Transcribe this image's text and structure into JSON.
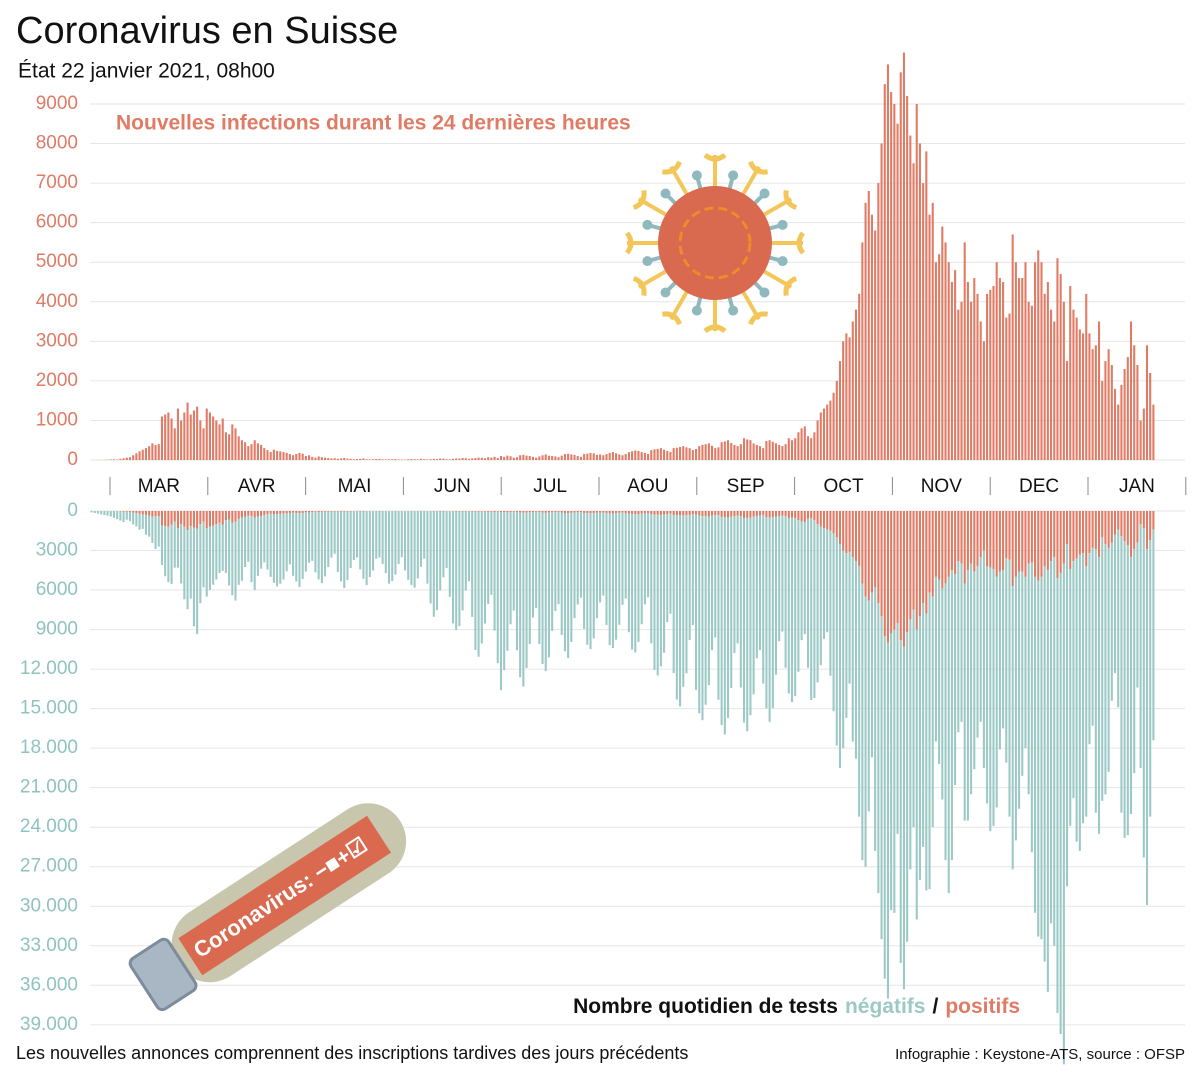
{
  "chart_data": {
    "type": "bar",
    "title": "Coronavirus en Suisse",
    "subtitle": "État 22 janvier 2021, 08h00",
    "top_label": "Nouvelles infections durant les 24 dernières heures",
    "bottom_label": "Nombre quotidien de tests",
    "legend_separator": "/",
    "illustration_text": "Coronavirus: −■+☑",
    "footnote": "Les nouvelles annonces comprennent des inscriptions tardives des jours précédents",
    "source": "Infographie : Keystone-ATS, source : OFSP",
    "months": [
      "MAR",
      "AVR",
      "MAI",
      "JUN",
      "JUL",
      "AOU",
      "SEP",
      "OCT",
      "NOV",
      "DEC",
      "JAN"
    ],
    "ylim": [
      0,
      10500
    ],
    "yticks": [
      0,
      1000,
      2000,
      3000,
      4000,
      5000,
      6000,
      7000,
      8000,
      9000
    ],
    "y2lim": [
      0,
      40000
    ],
    "y2ticks": [
      0,
      3000,
      6000,
      9000,
      {
        "value": 12000,
        "label": "12.000"
      },
      {
        "value": 15000,
        "label": "15.000"
      },
      {
        "value": 18000,
        "label": "18.000"
      },
      {
        "value": 21000,
        "label": "21.000"
      },
      {
        "value": 24000,
        "label": "24.000"
      },
      {
        "value": 27000,
        "label": "27.000"
      },
      {
        "value": 30000,
        "label": "30.000"
      },
      {
        "value": 33000,
        "label": "33.000"
      },
      {
        "value": 36000,
        "label": "36.000"
      },
      {
        "value": 39000,
        "label": "39.000"
      }
    ],
    "grid": true,
    "series": [
      {
        "name": "positifs",
        "color": "#e07b65",
        "values": [
          0,
          0,
          1,
          2,
          5,
          10,
          15,
          18,
          12,
          30,
          40,
          60,
          70,
          120,
          170,
          220,
          260,
          300,
          350,
          420,
          380,
          400,
          1100,
          1150,
          1200,
          1050,
          800,
          1300,
          1000,
          1200,
          1450,
          1150,
          1250,
          1350,
          1000,
          800,
          1300,
          1200,
          1100,
          1000,
          900,
          1050,
          700,
          650,
          900,
          800,
          600,
          500,
          450,
          350,
          400,
          500,
          420,
          380,
          300,
          250,
          200,
          260,
          230,
          220,
          200,
          180,
          150,
          120,
          150,
          180,
          160,
          100,
          120,
          80,
          60,
          90,
          70,
          60,
          50,
          40,
          45,
          30,
          40,
          50,
          35,
          30,
          20,
          25,
          30,
          40,
          20,
          15,
          20,
          25,
          30,
          18,
          15,
          20,
          20,
          25,
          15,
          10,
          10,
          20,
          25,
          20,
          15,
          30,
          20,
          15,
          20,
          30,
          25,
          40,
          35,
          20,
          15,
          30,
          40,
          35,
          50,
          45,
          30,
          40,
          50,
          60,
          55,
          45,
          70,
          60,
          80,
          50,
          100,
          80,
          110,
          95,
          60,
          70,
          120,
          130,
          110,
          100,
          80,
          60,
          90,
          120,
          140,
          110,
          100,
          90,
          70,
          110,
          150,
          160,
          140,
          130,
          100,
          80,
          150,
          160,
          180,
          170,
          130,
          140,
          120,
          150,
          180,
          200,
          170,
          140,
          120,
          150,
          200,
          220,
          240,
          230,
          200,
          180,
          150,
          250,
          270,
          280,
          300,
          260,
          230,
          200,
          300,
          310,
          330,
          350,
          320,
          300,
          250,
          280,
          350,
          380,
          400,
          420,
          360,
          300,
          320,
          450,
          470,
          500,
          430,
          380,
          350,
          400,
          550,
          520,
          500,
          420,
          380,
          350,
          300,
          480,
          500,
          460,
          420,
          380,
          350,
          400,
          550,
          500,
          550,
          700,
          800,
          850,
          600,
          550,
          700,
          1000,
          1200,
          1300,
          1400,
          1500,
          1700,
          2000,
          2500,
          3000,
          3200,
          3100,
          3500,
          3800,
          4200,
          5500,
          6500,
          6800,
          6200,
          5800,
          7000,
          8000,
          9500,
          10000,
          9300,
          9000,
          8500,
          9800,
          10300,
          9200,
          8200,
          7500,
          9000,
          8000,
          7000,
          7800,
          6200,
          6500,
          5000,
          5200,
          5900,
          5500,
          5000,
          4500,
          4800,
          3800,
          4000,
          5500,
          4500,
          4000,
          4600,
          4200,
          3500,
          3000,
          4200,
          4300,
          4400,
          5000,
          4600,
          4500,
          3600,
          3700,
          5700,
          5000,
          4600,
          4600,
          5000,
          4000,
          3900,
          5000,
          5300,
          5000,
          4200,
          4500,
          3800,
          3500,
          5100,
          4700,
          4000,
          2500,
          4400,
          3800,
          3600,
          3300,
          3200,
          4200,
          3200,
          2800,
          2900,
          3500,
          2000,
          2500,
          2800,
          2400,
          1800,
          1400,
          1900,
          2300,
          2600,
          3500,
          2900,
          2400,
          1000,
          1300,
          2900,
          2200,
          1400
        ]
      },
      {
        "name": "négatifs",
        "color": "#9cc9c5",
        "values": [
          100,
          150,
          200,
          250,
          300,
          350,
          400,
          500,
          600,
          700,
          800,
          600,
          700,
          900,
          1000,
          1200,
          1100,
          1500,
          1600,
          2000,
          2500,
          2300,
          3000,
          3800,
          4200,
          4500,
          3500,
          3000,
          4500,
          5500,
          6000,
          5500,
          7500,
          8000,
          6000,
          5000,
          5200,
          4800,
          4500,
          4200,
          3800,
          3500,
          4000,
          5000,
          5500,
          6000,
          5000,
          4800,
          3800,
          3500,
          5000,
          5500,
          4500,
          4000,
          3600,
          4200,
          4800,
          5200,
          5500,
          5300,
          5000,
          4400,
          3900,
          4800,
          5200,
          5600,
          5000,
          4500,
          3800,
          3700,
          4600,
          5100,
          5400,
          4900,
          4200,
          3500,
          3200,
          4600,
          5300,
          5800,
          5200,
          4300,
          3700,
          3500,
          4400,
          5100,
          5600,
          5000,
          4500,
          3600,
          3500,
          4000,
          4700,
          5500,
          5300,
          4800,
          4000,
          3500,
          4500,
          5200,
          5600,
          5800,
          5100,
          4200,
          3600,
          5500,
          7000,
          8000,
          7500,
          6000,
          5000,
          4300,
          6500,
          8500,
          9000,
          8700,
          7500,
          6000,
          5300,
          8000,
          10500,
          11000,
          10000,
          8500,
          7000,
          6300,
          9000,
          11500,
          13500,
          12000,
          10500,
          8500,
          7500,
          10500,
          12500,
          13200,
          11800,
          10000,
          8000,
          7300,
          10000,
          11500,
          12000,
          11000,
          9000,
          7500,
          7000,
          9300,
          10500,
          11000,
          9800,
          8000,
          7000,
          6500,
          8800,
          10000,
          10300,
          9500,
          8000,
          6800,
          6300,
          8500,
          10000,
          10200,
          9600,
          8500,
          7000,
          6500,
          9000,
          10300,
          10500,
          9700,
          8400,
          6900,
          6400,
          9800,
          11800,
          12200,
          11500,
          10500,
          8200,
          7600,
          12000,
          14000,
          14500,
          13000,
          12000,
          9500,
          8400,
          13300,
          15000,
          15500,
          14300,
          12800,
          10200,
          9300,
          14000,
          15800,
          16500,
          15200,
          13000,
          10400,
          9700,
          13000,
          15500,
          16200,
          15000,
          13500,
          10800,
          10200,
          12800,
          14500,
          15500,
          14500,
          12000,
          9500,
          8800,
          11500,
          13300,
          14000,
          13500,
          11500,
          9000,
          8500,
          11300,
          13800,
          13500,
          12000,
          10500,
          8400,
          7800,
          11000,
          13500,
          15800,
          17000,
          15000,
          12500,
          10000,
          14000,
          15000,
          19000,
          21000,
          20500,
          16000,
          12500,
          20000,
          22000,
          24500,
          26000,
          27000,
          21000,
          21500,
          16000,
          24500,
          26000,
          23500,
          19000,
          16500,
          22000,
          20000,
          18500,
          21000,
          22500,
          17500,
          12500,
          14000,
          16000,
          21000,
          24000,
          22000,
          16000,
          13000,
          12000,
          18000,
          19000,
          17500,
          15000,
          13000,
          12500,
          16500,
          18000,
          20000,
          19500,
          17500,
          13500,
          12000,
          15500,
          19500,
          21500,
          20000,
          18000,
          15500,
          13000,
          17500,
          22000,
          25500,
          27000,
          27500,
          30000,
          32000,
          27500,
          29500,
          33000,
          35000,
          38000,
          26000,
          19500,
          18000,
          21500,
          22500,
          20500,
          19000,
          14500,
          13500,
          20000,
          21000,
          20000,
          19000,
          17000,
          12000,
          10500,
          13500,
          21000,
          22500,
          22000,
          19500,
          17000,
          11000,
          18500,
          25000,
          27000,
          21000,
          16000
        ]
      }
    ]
  }
}
